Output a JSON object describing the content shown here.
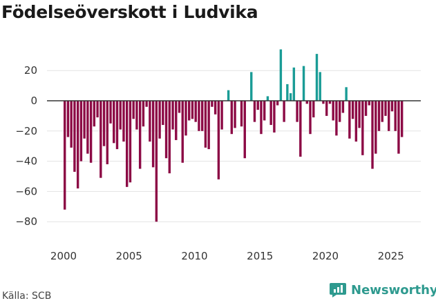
{
  "chart_data": {
    "type": "bar",
    "title": "Födelseöverskott i Ludvika",
    "source": "Källa: SCB",
    "brand": "Newsworthy",
    "xlabel": "",
    "ylabel": "",
    "ylim": [
      -90,
      35
    ],
    "xlim": [
      1998.5,
      2027.5
    ],
    "yticks": [
      "20",
      "0",
      "−20",
      "−40",
      "−60",
      "−80"
    ],
    "ytick_values": [
      20,
      0,
      -20,
      -40,
      -60,
      -80
    ],
    "xticks": [
      "2000",
      "2005",
      "2010",
      "2015",
      "2020",
      "2025"
    ],
    "xtick_values": [
      2000,
      2005,
      2010,
      2015,
      2020,
      2025
    ],
    "colors": {
      "positive": "#1a9c96",
      "negative": "#8c0a45",
      "grid": "#e3e3e3",
      "zero": "#333333"
    },
    "series": [
      {
        "name": "Födelseöverskott",
        "start_year": 2000,
        "step": 0.25,
        "values": [
          -72,
          -24,
          -31,
          -47,
          -58,
          -40,
          -25,
          -35,
          -41,
          -17,
          -11,
          -51,
          -30,
          -42,
          -15,
          -28,
          -32,
          -19,
          -27,
          -57,
          -54,
          -12,
          -19,
          -45,
          -17,
          -4,
          -27,
          -44,
          -80,
          -25,
          -16,
          -38,
          -48,
          -19,
          -26,
          -8,
          -41,
          -23,
          -13,
          -12,
          -14,
          -20,
          -20,
          -31,
          -32,
          -4,
          -9,
          -52,
          -19,
          0,
          7,
          -22,
          -18,
          0,
          -17,
          -38,
          0,
          19,
          -14,
          -6,
          -22,
          -13,
          3,
          -16,
          -21,
          -3,
          34,
          -14,
          11,
          5,
          22,
          -14,
          -37,
          23,
          -2,
          -22,
          -11,
          31,
          19,
          -2,
          -10,
          -2,
          -13,
          -23,
          -14,
          -8,
          9,
          -25,
          -12,
          -27,
          -18,
          -36,
          -10,
          -3,
          -45,
          -35,
          -20,
          -14,
          -10,
          -20,
          -7,
          -20,
          -35,
          -24
        ]
      }
    ]
  }
}
